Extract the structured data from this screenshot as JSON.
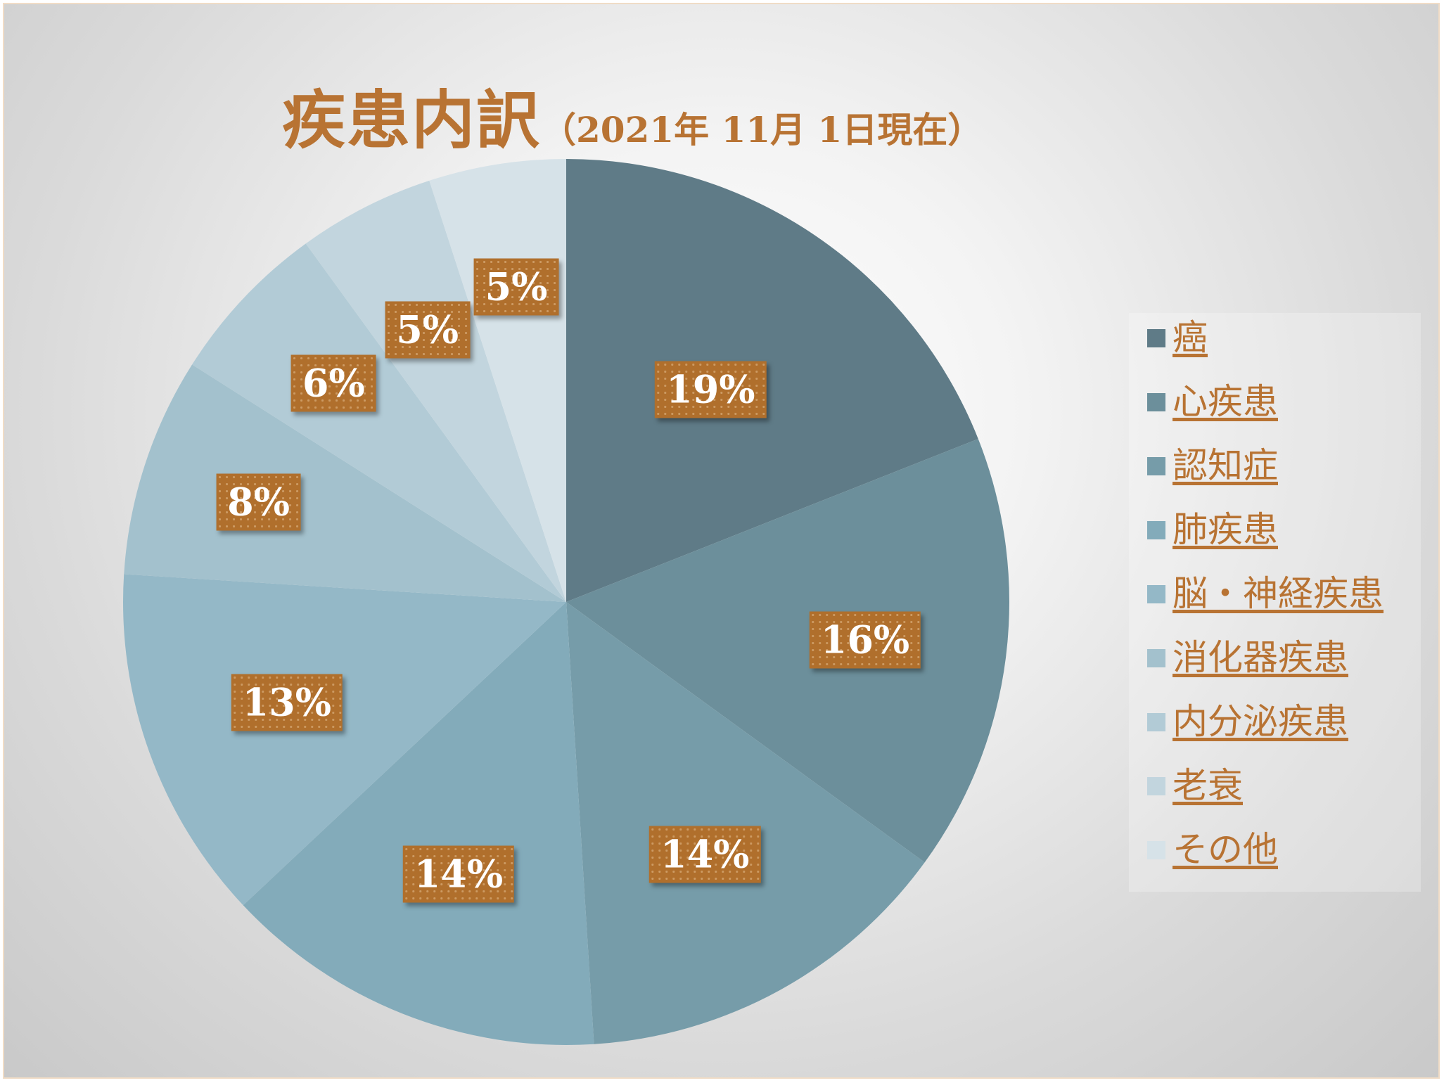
{
  "title": {
    "main": "疾患内訳",
    "sub": "（2021年 11月 1日現在）"
  },
  "colors": {
    "title_text": "#b87333",
    "label_background": "#b06f2c",
    "label_text": "#ffffff",
    "legend_text": "#b87333"
  },
  "chart_data": {
    "type": "pie",
    "title": "疾患内訳（2021年 11月 1日現在）",
    "legend_position": "right",
    "start_angle": "12 o'clock, clockwise",
    "slices": [
      {
        "name": "癌",
        "value": 19,
        "label": "19%",
        "color": "#5f7b87"
      },
      {
        "name": "心疾患",
        "value": 16,
        "label": "16%",
        "color": "#6c8f9b"
      },
      {
        "name": "認知症",
        "value": 14,
        "label": "14%",
        "color": "#769ca9"
      },
      {
        "name": "肺疾患",
        "value": 14,
        "label": "14%",
        "color": "#83abba"
      },
      {
        "name": "脳・神経疾患",
        "value": 13,
        "label": "13%",
        "color": "#94b8c7"
      },
      {
        "name": "消化器疾患",
        "value": 8,
        "label": "8%",
        "color": "#a3c1cd"
      },
      {
        "name": "内分泌疾患",
        "value": 6,
        "label": "6%",
        "color": "#b2cbd6"
      },
      {
        "name": "老衰",
        "value": 5,
        "label": "5%",
        "color": "#c2d5de"
      },
      {
        "name": "その他",
        "value": 5,
        "label": "5%",
        "color": "#d6e2e8"
      }
    ]
  }
}
